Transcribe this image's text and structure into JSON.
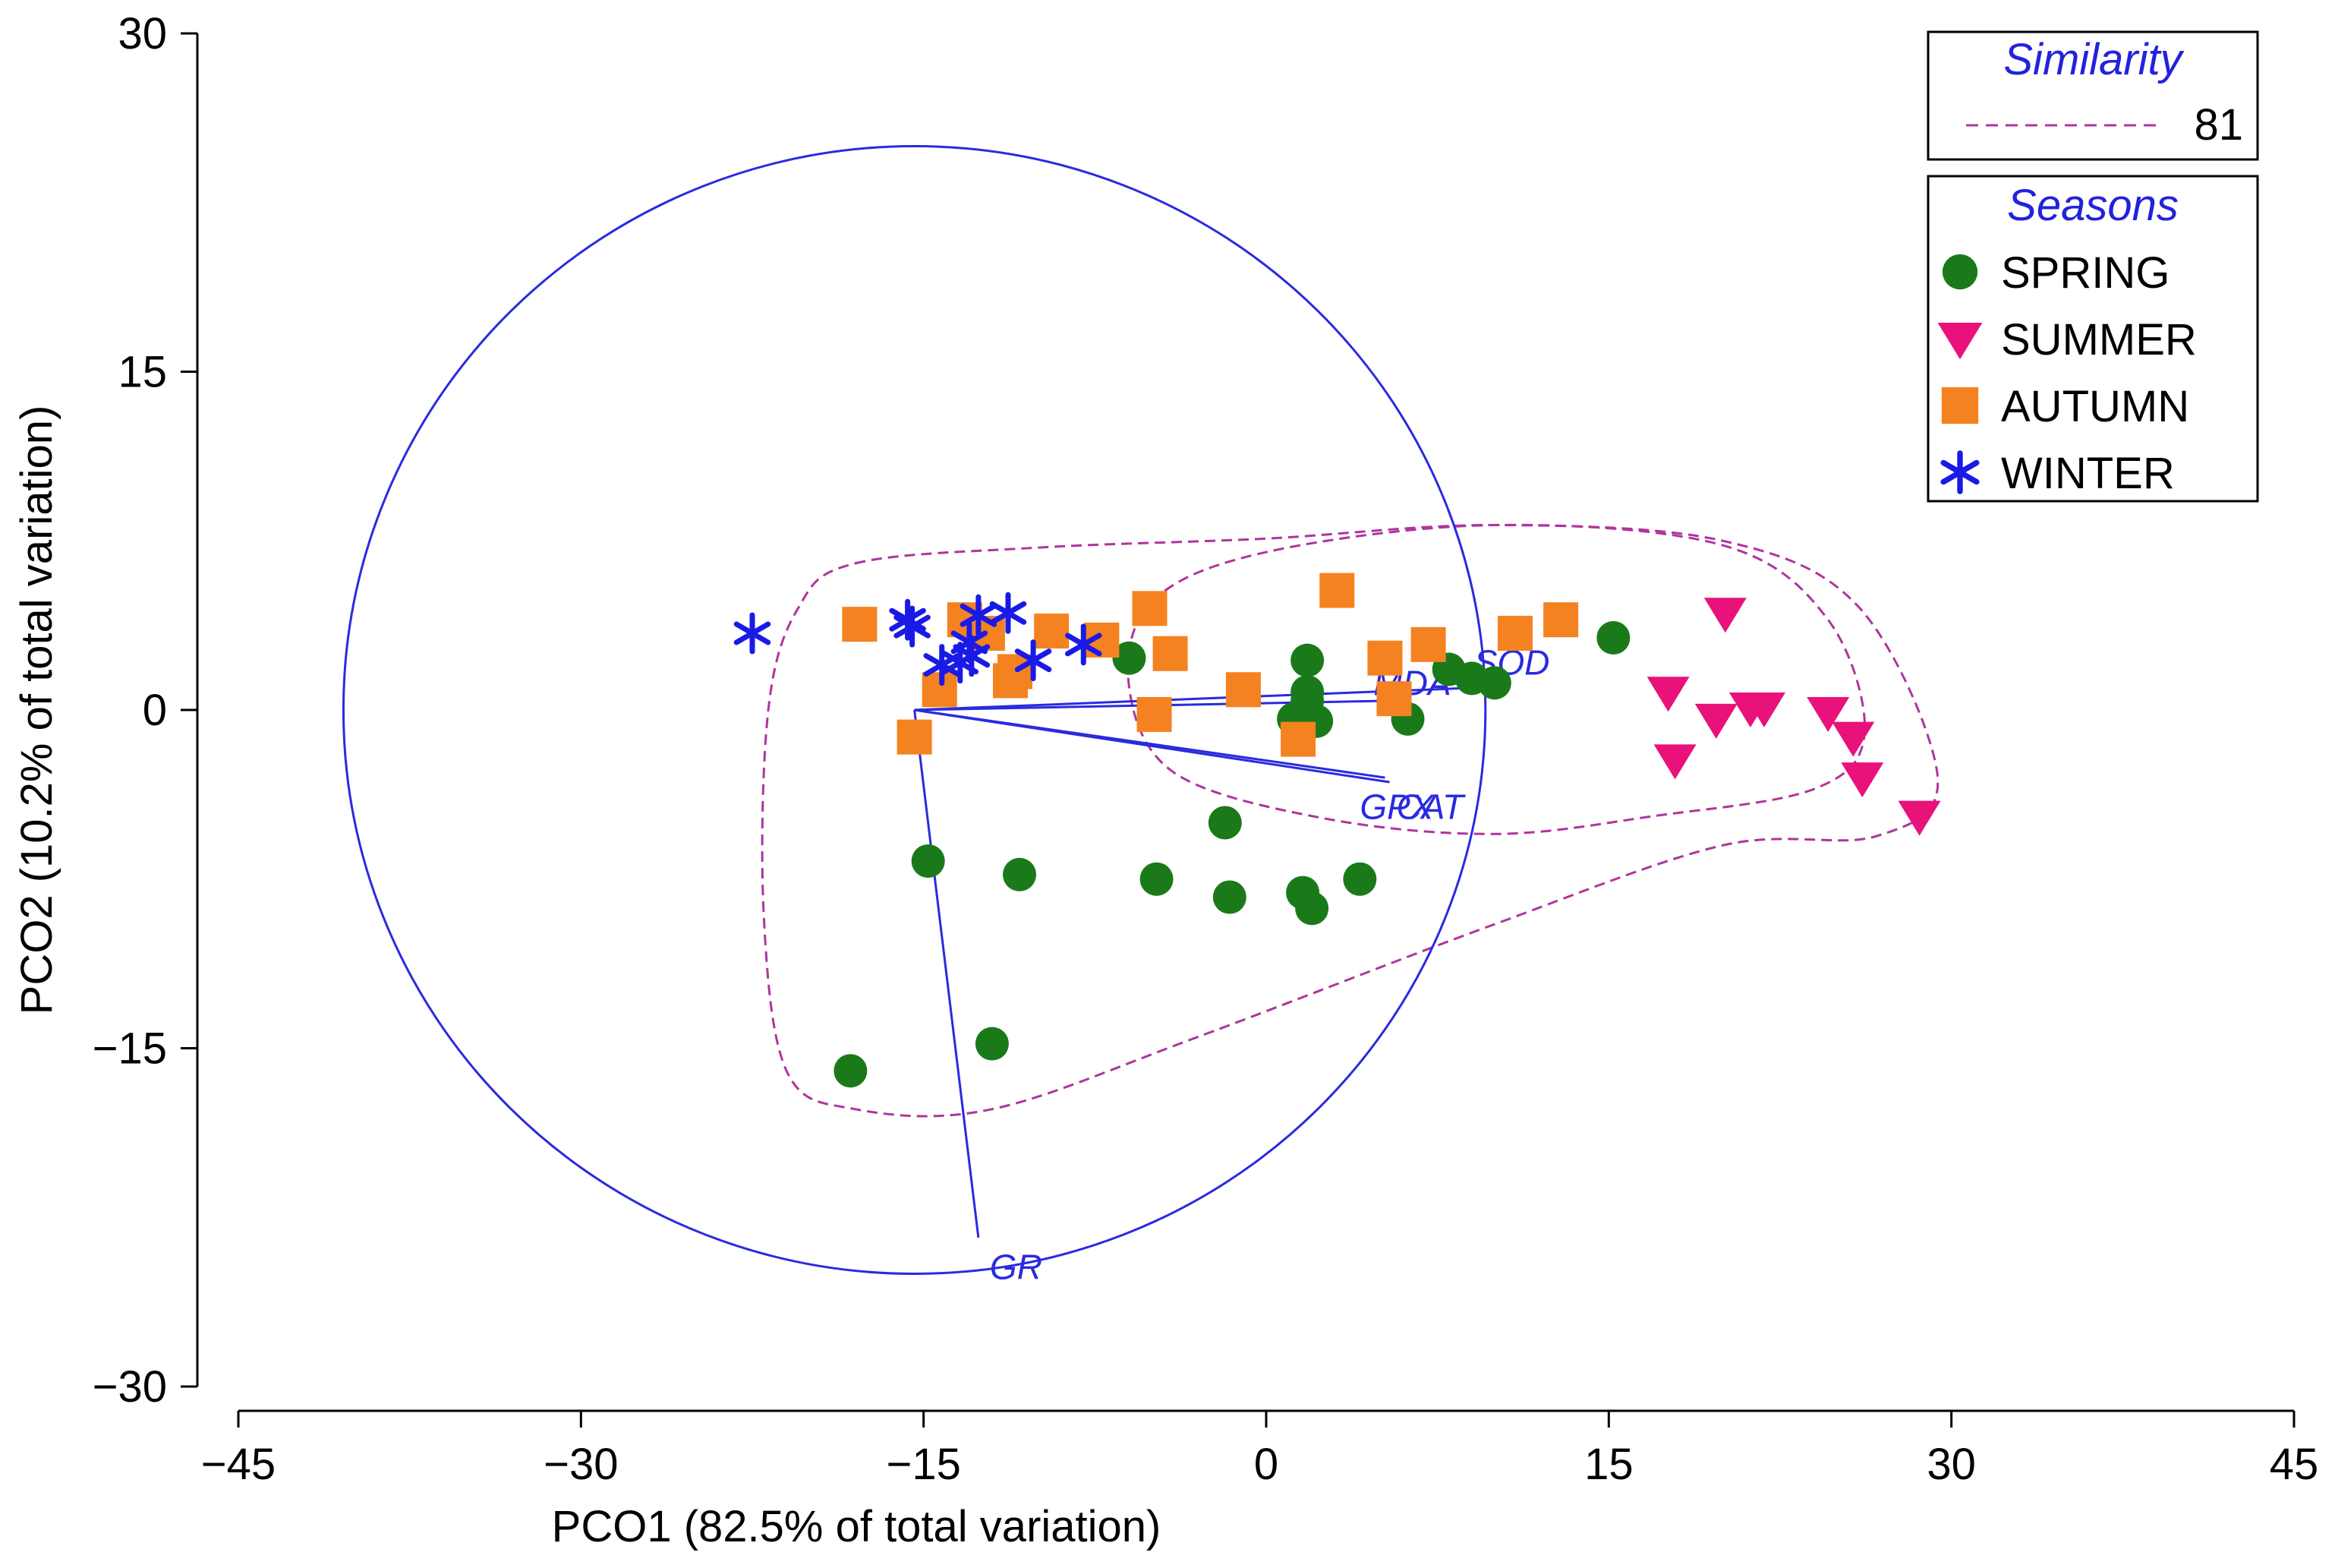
{
  "chart_data": {
    "type": "scatter",
    "title": "",
    "xlabel": "PCO1 (82.5% of total variation)",
    "ylabel": "PCO2 (10.2% of total variation)",
    "xlim": [
      -45,
      45
    ],
    "ylim": [
      -30,
      30
    ],
    "x_ticks": [
      "−45",
      "−30",
      "−15",
      "0",
      "15",
      "30",
      "45"
    ],
    "y_ticks": [
      "30",
      "15",
      "0",
      "−15",
      "−30"
    ],
    "grid": false,
    "legend_position": "top-right",
    "legend": {
      "similarity_title": "Similarity",
      "similarity_value": "81",
      "seasons_title": "Seasons",
      "title_color": "#2222dd"
    },
    "series": [
      {
        "name": "SPRING",
        "marker": "circle",
        "color": "#1a7a1a",
        "points": [
          [
            -6,
            2.3
          ],
          [
            1.8,
            2.2
          ],
          [
            1.8,
            0.8
          ],
          [
            1.8,
            0.4
          ],
          [
            1.2,
            -0.4
          ],
          [
            2.2,
            -0.5
          ],
          [
            6.2,
            -0.4
          ],
          [
            8,
            1.8
          ],
          [
            9,
            1.4
          ],
          [
            10,
            1.2
          ],
          [
            15.2,
            3.2
          ],
          [
            -14.8,
            -6.7
          ],
          [
            -10.8,
            -7.3
          ],
          [
            -4.8,
            -7.5
          ],
          [
            -1.8,
            -5
          ],
          [
            -1.6,
            -8.3
          ],
          [
            1.6,
            -8.1
          ],
          [
            2,
            -8.8
          ],
          [
            4.1,
            -7.5
          ],
          [
            -18.2,
            -16
          ],
          [
            -12,
            -14.8
          ]
        ]
      },
      {
        "name": "SUMMER",
        "marker": "triangle-down",
        "color": "#e8127a",
        "points": [
          [
            20.1,
            4.3
          ],
          [
            17.6,
            0.8
          ],
          [
            19.7,
            -0.4
          ],
          [
            21.2,
            0.1
          ],
          [
            21.8,
            0.1
          ],
          [
            24.6,
            -0.1
          ],
          [
            17.9,
            -2.2
          ],
          [
            25.7,
            -1.2
          ],
          [
            26.1,
            -3
          ],
          [
            28.6,
            -4.7
          ]
        ]
      },
      {
        "name": "AUTUMN",
        "marker": "square",
        "color": "#f58220",
        "points": [
          [
            -17.8,
            3.8
          ],
          [
            -13.2,
            4
          ],
          [
            -12.2,
            3.4
          ],
          [
            -9.4,
            3.5
          ],
          [
            -7.2,
            3.1
          ],
          [
            -5.1,
            4.5
          ],
          [
            -4.2,
            2.5
          ],
          [
            -11,
            1.7
          ],
          [
            -11.2,
            1.3
          ],
          [
            -14.3,
            0.9
          ],
          [
            -15.4,
            -1.2
          ],
          [
            -4.9,
            -0.2
          ],
          [
            -1,
            0.9
          ],
          [
            1.4,
            -1.3
          ],
          [
            3.1,
            5.3
          ],
          [
            5.2,
            2.3
          ],
          [
            5.6,
            0.5
          ],
          [
            7.1,
            2.9
          ],
          [
            10.9,
            3.4
          ],
          [
            12.9,
            4
          ]
        ]
      },
      {
        "name": "WINTER",
        "marker": "asterisk",
        "color": "#1a1ae6",
        "points": [
          [
            -22.5,
            3.4
          ],
          [
            -15.7,
            4
          ],
          [
            -15.5,
            3.7
          ],
          [
            -13.4,
            2.1
          ],
          [
            -14.2,
            2
          ],
          [
            -12.9,
            2.4
          ],
          [
            -13,
            3
          ],
          [
            -12.6,
            4.2
          ],
          [
            -11.3,
            4.3
          ],
          [
            -10.2,
            2.2
          ],
          [
            -8,
            2.9
          ]
        ]
      }
    ],
    "vectors": {
      "origin": [
        -15.4,
        0
      ],
      "color": "#2a2ae0",
      "items": [
        {
          "label": "MDA",
          "tip": [
            5,
            0.4
          ],
          "label_at": [
            4.7,
            1.2
          ]
        },
        {
          "label": "SOD",
          "tip": [
            9.5,
            1
          ],
          "label_at": [
            9.1,
            2.1
          ]
        },
        {
          "label": "GPX",
          "tip": [
            5.2,
            -3
          ],
          "label_at": [
            4.1,
            -4.3
          ]
        },
        {
          "label": "CAT",
          "tip": [
            5.4,
            -3.2
          ],
          "label_at": [
            5.7,
            -4.3
          ]
        },
        {
          "label": "GR",
          "tip": [
            -12.6,
            -23.4
          ],
          "label_at": [
            -12.1,
            -24.7
          ]
        }
      ]
    },
    "correlation_circle": {
      "center": [
        -15.4,
        0
      ],
      "radius": 25,
      "color": "#2a2ae0"
    },
    "similarity_contours": {
      "color": "#b0349e",
      "level": 81,
      "outer": [
        [
          -18,
          6.5
        ],
        [
          -10,
          7.2
        ],
        [
          0,
          7.6
        ],
        [
          10,
          8.2
        ],
        [
          20,
          7.5
        ],
        [
          26,
          4.5
        ],
        [
          29.4,
          -3
        ],
        [
          26.7,
          -5.6
        ],
        [
          20,
          -6
        ],
        [
          10,
          -9.5
        ],
        [
          -3,
          -14.5
        ],
        [
          -12,
          -17.7
        ],
        [
          -18,
          -17.7
        ],
        [
          -21,
          -16
        ],
        [
          -22,
          -9
        ],
        [
          -21.8,
          0
        ],
        [
          -20.5,
          4.5
        ]
      ],
      "inner": [
        [
          -5,
          4.8
        ],
        [
          0,
          7
        ],
        [
          10,
          8.2
        ],
        [
          20,
          7.3
        ],
        [
          24.6,
          4
        ],
        [
          26.2,
          -1
        ],
        [
          24,
          -3.5
        ],
        [
          17,
          -4.7
        ],
        [
          10,
          -5.5
        ],
        [
          2.5,
          -4.8
        ],
        [
          -4,
          -2.8
        ],
        [
          -6,
          1
        ]
      ]
    }
  }
}
